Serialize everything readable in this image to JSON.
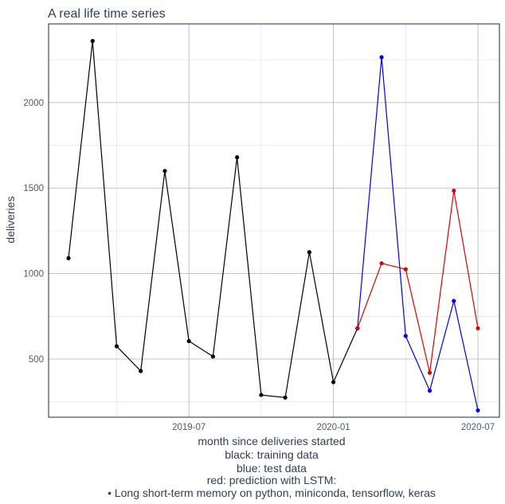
{
  "chart_data": {
    "type": "line",
    "title": "A real life time series",
    "xlabel": "month since deliveries started",
    "ylabel": "deliveries",
    "caption": [
      "black: training data",
      "blue: test data",
      "red: prediction with LSTM:",
      "• Long short-term memory on python, miniconda, tensorflow, keras"
    ],
    "x_tick_labels": [
      "2019-07",
      "2020-01",
      "2020-07"
    ],
    "y_tick_labels": [
      "500",
      "1000",
      "1500",
      "2000"
    ],
    "y_ticks": [
      500,
      1000,
      1500,
      2000
    ],
    "xlim": [
      "2019-02",
      "2020-07"
    ],
    "ylim": [
      160,
      2460
    ],
    "grid": true,
    "colors": {
      "training": "#000000",
      "test": "#0000ee",
      "prediction": "#dd0000",
      "panel_border": "#2f3f55",
      "grid_major": "#bcbcbc",
      "grid_minor": "#e0e0e0"
    },
    "series": [
      {
        "color": "#000000",
        "x": [
          "2019-02",
          "2019-03",
          "2019-04",
          "2019-05",
          "2019-06",
          "2019-07",
          "2019-08",
          "2019-09",
          "2019-10",
          "2019-11",
          "2019-12",
          "2020-01",
          "2020-02"
        ],
        "values": [
          1090,
          2360,
          575,
          430,
          1600,
          605,
          515,
          1680,
          290,
          275,
          1125,
          365,
          680
        ]
      },
      {
        "color": "#0000ee",
        "x": [
          "2020-02",
          "2020-03",
          "2020-04",
          "2020-05",
          "2020-06",
          "2020-07"
        ],
        "values": [
          680,
          2265,
          635,
          315,
          840,
          200
        ]
      },
      {
        "color": "#dd0000",
        "x": [
          "2020-02",
          "2020-03",
          "2020-04",
          "2020-05",
          "2020-06",
          "2020-07"
        ],
        "values": [
          680,
          1060,
          1025,
          420,
          1485,
          680
        ]
      }
    ]
  }
}
